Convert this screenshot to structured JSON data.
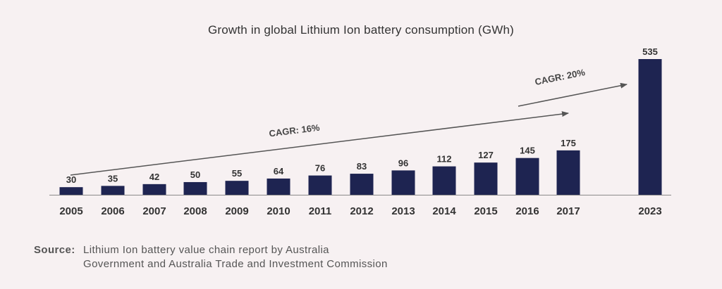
{
  "chart_data": {
    "type": "bar",
    "title": "Growth in global Lithium Ion battery consumption (GWh)",
    "categories": [
      "2005",
      "2006",
      "2007",
      "2008",
      "2009",
      "2010",
      "2011",
      "2012",
      "2013",
      "2014",
      "2015",
      "2016",
      "2017",
      "2023"
    ],
    "values": [
      30,
      35,
      42,
      50,
      55,
      64,
      76,
      83,
      96,
      112,
      127,
      145,
      175,
      535
    ],
    "ylim": [
      0,
      535
    ],
    "grid": false,
    "bar_color": "#1e2451",
    "annotations": [
      {
        "text": "CAGR: 16%",
        "from_category": "2005",
        "to_category": "2017"
      },
      {
        "text": "CAGR: 20%",
        "from_category": "2016",
        "to_category": "2023"
      }
    ]
  },
  "source": {
    "label": "Source:",
    "lines": [
      "Lithium Ion battery value chain report by Australia",
      "Government and Australia Trade and Investment Commission"
    ]
  }
}
